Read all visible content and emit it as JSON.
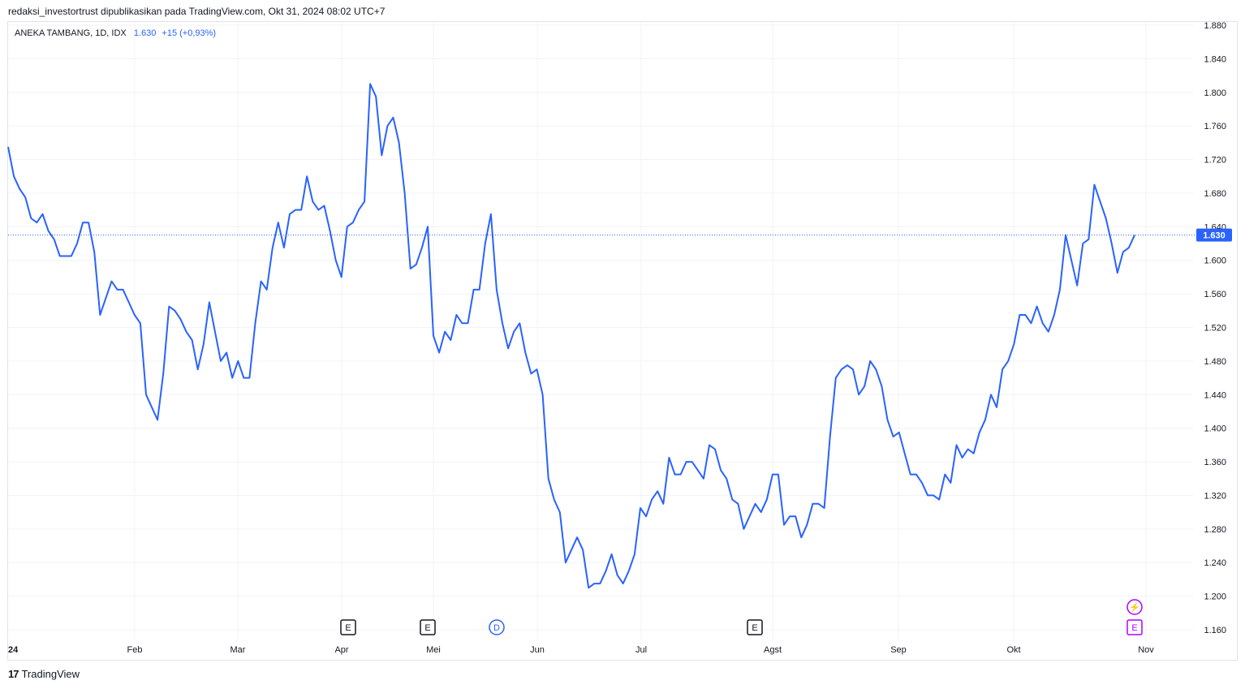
{
  "header": {
    "publisher_line": "redaksi_investortrust dipublikasikan pada TradingView.com, Okt 31, 2024 08:02 UTC+7"
  },
  "legend": {
    "symbol": "ANEKA TAMBANG, 1D, IDX",
    "price": "1.630",
    "change": "+15 (+0,93%)"
  },
  "footer": {
    "brand": "TradingView",
    "logo_text": "17"
  },
  "colors": {
    "line": "#2962ff",
    "grid": "#f0f3fa",
    "event_dividend": "#2962ff",
    "event_earnings": "#131722",
    "event_upcoming": "#b000ff"
  },
  "events": [
    {
      "type": "E",
      "month_index": 3.06,
      "label": "E"
    },
    {
      "type": "E",
      "month_index": 3.83,
      "label": "E"
    },
    {
      "type": "D",
      "month_index": 4.48,
      "label": "D"
    },
    {
      "type": "E",
      "month_index": 7.03,
      "label": "E"
    },
    {
      "type": "E",
      "month_index": 10.89,
      "label": "E",
      "upcoming": true
    },
    {
      "type": "flash",
      "month_index": 10.89,
      "label": "⚡",
      "upcoming": true
    }
  ],
  "chart_data": {
    "type": "line",
    "title": "ANEKA TAMBANG, 1D, IDX",
    "x_labels": [
      "24",
      "Feb",
      "Mar",
      "Apr",
      "Mei",
      "Jun",
      "Jul",
      "Agst",
      "Sep",
      "Okt",
      "Nov"
    ],
    "y_ticks": [
      "1.160",
      "1.200",
      "1.240",
      "1.280",
      "1.320",
      "1.360",
      "1.400",
      "1.440",
      "1.480",
      "1.520",
      "1.560",
      "1.600",
      "1.640",
      "1.680",
      "1.720",
      "1.760",
      "1.800",
      "1.840",
      "1.880"
    ],
    "ylim": [
      1150,
      1885
    ],
    "last_value": 1630,
    "last_value_label": "1.630",
    "grid": true,
    "series": [
      {
        "values": [
          1735,
          1700,
          1685,
          1675,
          1650,
          1645,
          1655,
          1635,
          1625,
          1605,
          1605,
          1605,
          1620,
          1645,
          1645,
          1610,
          1535,
          1555,
          1575,
          1565,
          1565,
          1550,
          1535,
          1525,
          1440,
          1425,
          1410,
          1465,
          1545,
          1540,
          1530,
          1515,
          1505,
          1470,
          1500,
          1550,
          1515,
          1480,
          1490,
          1460,
          1480,
          1460,
          1460,
          1525,
          1575,
          1565,
          1615,
          1645,
          1615,
          1655,
          1660,
          1660,
          1700,
          1670,
          1660,
          1665,
          1635,
          1600,
          1580,
          1640,
          1645,
          1660,
          1670,
          1810,
          1795,
          1725,
          1760,
          1770,
          1740,
          1680,
          1590,
          1595,
          1615,
          1640,
          1510,
          1490,
          1515,
          1505,
          1535,
          1525,
          1525,
          1565,
          1565,
          1620,
          1655,
          1565,
          1525,
          1495,
          1515,
          1525,
          1490,
          1465,
          1470,
          1440,
          1340,
          1315,
          1300,
          1240,
          1255,
          1270,
          1255,
          1210,
          1215,
          1215,
          1230,
          1250,
          1225,
          1215,
          1230,
          1250,
          1305,
          1295,
          1315,
          1325,
          1310,
          1365,
          1345,
          1345,
          1360,
          1360,
          1350,
          1340,
          1380,
          1375,
          1350,
          1340,
          1315,
          1310,
          1280,
          1295,
          1310,
          1300,
          1315,
          1345,
          1345,
          1285,
          1295,
          1295,
          1270,
          1285,
          1310,
          1310,
          1305,
          1390,
          1460,
          1470,
          1475,
          1470,
          1440,
          1450,
          1480,
          1470,
          1450,
          1410,
          1390,
          1395,
          1370,
          1345,
          1345,
          1335,
          1320,
          1320,
          1315,
          1345,
          1335,
          1380,
          1365,
          1375,
          1370,
          1395,
          1410,
          1440,
          1425,
          1470,
          1480,
          1500,
          1535,
          1535,
          1525,
          1545,
          1525,
          1515,
          1535,
          1565,
          1630,
          1600,
          1570,
          1620,
          1625,
          1690,
          1670,
          1650,
          1620,
          1585,
          1610,
          1615,
          1630
        ]
      }
    ]
  }
}
